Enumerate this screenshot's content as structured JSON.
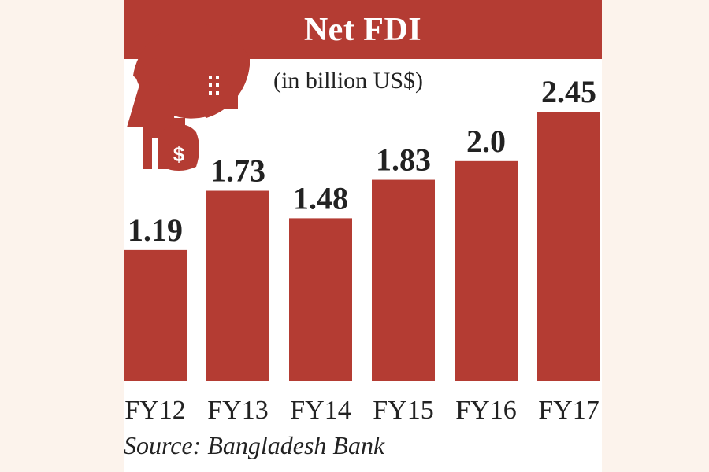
{
  "title": "Net FDI",
  "subtitle": "(in billion US$)",
  "source": "Source: Bangladesh Bank",
  "colors": {
    "bar": "#b43c33",
    "accent": "#b43c33",
    "background": "#fcf3ec"
  },
  "icon": "investor-money-buildings-icon",
  "chart_data": {
    "type": "bar",
    "categories": [
      "FY12",
      "FY13",
      "FY14",
      "FY15",
      "FY16",
      "FY17"
    ],
    "values": [
      1.19,
      1.73,
      1.48,
      1.83,
      2.0,
      2.45
    ],
    "value_labels": [
      "1.19",
      "1.73",
      "1.48",
      "1.83",
      "2.0",
      "2.45"
    ],
    "title": "Net FDI",
    "ylabel": "",
    "xlabel": "",
    "ylim": [
      0,
      2.45
    ],
    "grid": false,
    "legend": "none"
  }
}
